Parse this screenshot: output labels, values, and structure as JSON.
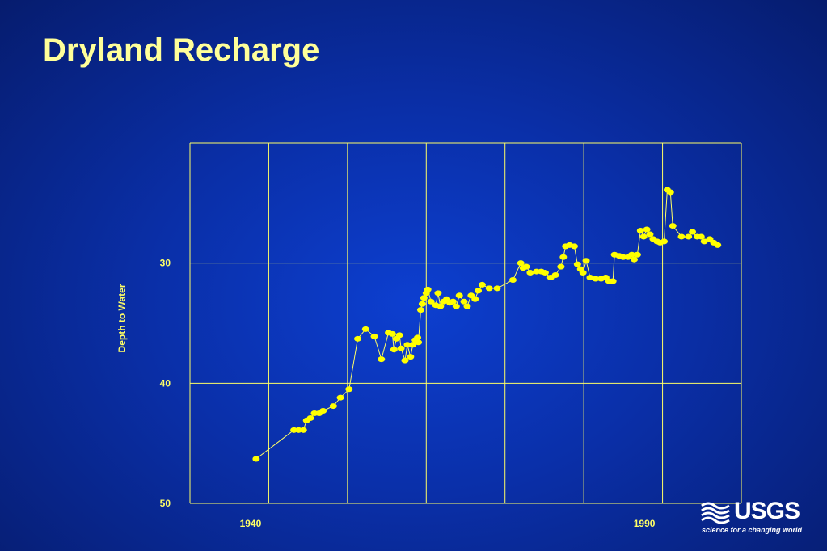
{
  "slide": {
    "title": "Dryland Recharge"
  },
  "logo": {
    "name": "USGS",
    "tagline": "science for a changing world"
  },
  "colors": {
    "axis": "#ffff66",
    "marker": "#ffff00",
    "title": "#ffff99",
    "background": "#0a2fa8"
  },
  "chart_data": {
    "type": "line",
    "title": "",
    "xlabel": "",
    "ylabel": "Depth to Water",
    "xlim": [
      1932,
      2002
    ],
    "ylim": [
      20,
      50
    ],
    "y_inverted": true,
    "grid": true,
    "x_ticks": [
      {
        "value": 1940,
        "label": "1940"
      },
      {
        "value": 1990,
        "label": "1990"
      }
    ],
    "y_ticks": [
      {
        "value": 30,
        "label": "30"
      },
      {
        "value": 40,
        "label": "40"
      },
      {
        "value": 50,
        "label": "50"
      }
    ],
    "x_grid": [
      1932,
      1942,
      1952,
      1962,
      1972,
      1982,
      1992,
      2002
    ],
    "y_grid": [
      20,
      30,
      40,
      50
    ],
    "series": [
      {
        "markers": true,
        "points": [
          [
            1940.4,
            46.3
          ],
          [
            1945.2,
            43.9
          ],
          [
            1945.8,
            43.9
          ],
          [
            1946.4,
            43.9
          ],
          [
            1946.8,
            43.1
          ],
          [
            1947.3,
            42.9
          ],
          [
            1947.8,
            42.5
          ],
          [
            1948.4,
            42.5
          ],
          [
            1948.9,
            42.3
          ],
          [
            1950.2,
            41.9
          ],
          [
            1951.1,
            41.2
          ],
          [
            1952.2,
            40.5
          ],
          [
            1953.3,
            36.3
          ],
          [
            1954.3,
            35.5
          ],
          [
            1955.4,
            36.1
          ],
          [
            1956.3,
            38.0
          ],
          [
            1957.2,
            35.8
          ],
          [
            1957.7,
            35.9
          ],
          [
            1957.9,
            37.2
          ],
          [
            1958.2,
            36.3
          ],
          [
            1958.6,
            36.0
          ],
          [
            1958.8,
            37.1
          ],
          [
            1959.3,
            38.1
          ],
          [
            1959.6,
            36.8
          ],
          [
            1960.0,
            37.8
          ],
          [
            1960.3,
            36.8
          ],
          [
            1960.6,
            36.4
          ],
          [
            1960.9,
            36.2
          ],
          [
            1961.0,
            36.6
          ],
          [
            1961.3,
            33.9
          ],
          [
            1961.5,
            33.4
          ],
          [
            1961.7,
            32.9
          ],
          [
            1962.0,
            32.5
          ],
          [
            1962.2,
            32.2
          ],
          [
            1962.6,
            33.2
          ],
          [
            1963.2,
            33.5
          ],
          [
            1963.5,
            32.5
          ],
          [
            1963.8,
            33.6
          ],
          [
            1964.2,
            33.2
          ],
          [
            1964.6,
            33.0
          ],
          [
            1965.0,
            33.3
          ],
          [
            1965.4,
            33.2
          ],
          [
            1965.8,
            33.6
          ],
          [
            1966.2,
            32.7
          ],
          [
            1966.8,
            33.2
          ],
          [
            1967.2,
            33.6
          ],
          [
            1967.7,
            32.7
          ],
          [
            1968.2,
            33.0
          ],
          [
            1968.6,
            32.3
          ],
          [
            1969.1,
            31.8
          ],
          [
            1970.0,
            32.1
          ],
          [
            1971.0,
            32.1
          ],
          [
            1973.0,
            31.4
          ],
          [
            1974.0,
            30.0
          ],
          [
            1974.3,
            30.4
          ],
          [
            1974.7,
            30.3
          ],
          [
            1975.2,
            30.8
          ],
          [
            1976.0,
            30.7
          ],
          [
            1976.6,
            30.7
          ],
          [
            1977.1,
            30.8
          ],
          [
            1977.8,
            31.2
          ],
          [
            1978.4,
            31.0
          ],
          [
            1979.1,
            30.3
          ],
          [
            1979.4,
            29.5
          ],
          [
            1979.7,
            28.6
          ],
          [
            1980.2,
            28.5
          ],
          [
            1980.8,
            28.6
          ],
          [
            1981.2,
            30.1
          ],
          [
            1981.6,
            30.5
          ],
          [
            1981.9,
            30.8
          ],
          [
            1982.3,
            29.8
          ],
          [
            1982.8,
            31.2
          ],
          [
            1983.5,
            31.3
          ],
          [
            1984.2,
            31.3
          ],
          [
            1984.8,
            31.2
          ],
          [
            1985.2,
            31.5
          ],
          [
            1985.7,
            31.5
          ],
          [
            1985.9,
            29.3
          ],
          [
            1986.5,
            29.4
          ],
          [
            1987.0,
            29.5
          ],
          [
            1987.6,
            29.5
          ],
          [
            1988.1,
            29.3
          ],
          [
            1988.4,
            29.7
          ],
          [
            1988.8,
            29.3
          ],
          [
            1989.2,
            27.3
          ],
          [
            1989.6,
            27.8
          ],
          [
            1990.0,
            27.2
          ],
          [
            1990.4,
            27.6
          ],
          [
            1990.8,
            28.0
          ],
          [
            1991.3,
            28.2
          ],
          [
            1991.7,
            28.3
          ],
          [
            1992.2,
            28.2
          ],
          [
            1992.6,
            23.9
          ],
          [
            1993.0,
            24.1
          ],
          [
            1993.3,
            26.9
          ],
          [
            1994.4,
            27.8
          ],
          [
            1995.3,
            27.8
          ],
          [
            1995.8,
            27.4
          ],
          [
            1996.4,
            27.8
          ],
          [
            1996.9,
            27.8
          ],
          [
            1997.3,
            28.2
          ],
          [
            1998.0,
            28.0
          ],
          [
            1998.5,
            28.3
          ],
          [
            1999.0,
            28.5
          ]
        ]
      }
    ]
  }
}
